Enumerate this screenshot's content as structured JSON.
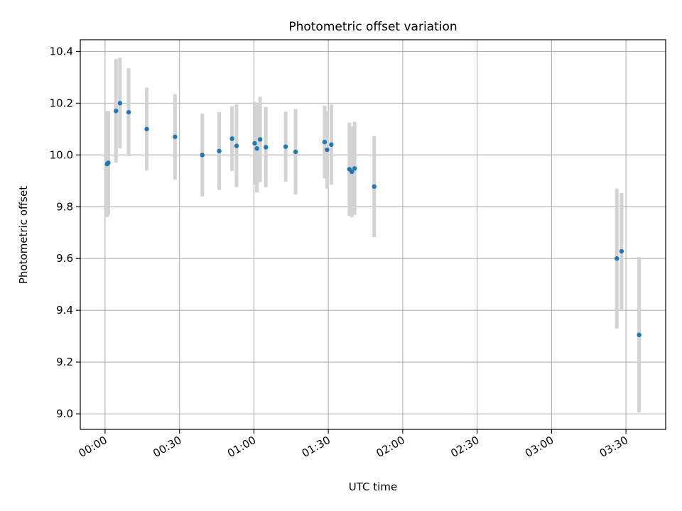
{
  "chart_data": {
    "type": "scatter",
    "title": "Photometric offset variation",
    "xlabel": "UTC time",
    "ylabel": "Photometric offset",
    "x_unit": "minutes",
    "xlim": [
      -10,
      226
    ],
    "ylim": [
      8.94,
      10.445
    ],
    "x_ticks": [
      0,
      30,
      60,
      90,
      120,
      150,
      180,
      210
    ],
    "x_tick_labels": [
      "00:00",
      "00:30",
      "01:00",
      "01:30",
      "02:00",
      "02:30",
      "03:00",
      "03:30"
    ],
    "y_ticks": [
      9.0,
      9.2,
      9.4,
      9.6,
      9.8,
      10.0,
      10.2,
      10.4
    ],
    "y_tick_labels": [
      "9.0",
      "9.2",
      "9.4",
      "9.6",
      "9.8",
      "10.0",
      "10.2",
      "10.4"
    ],
    "grid": true,
    "marker_color": "#1f77b4",
    "errorbar_color": "#d3d3d3",
    "points": [
      {
        "x": 0.8,
        "y": 9.965,
        "yerr": 0.205
      },
      {
        "x": 1.3,
        "y": 9.97,
        "yerr": 0.2
      },
      {
        "x": 4.4,
        "y": 10.17,
        "yerr": 0.2
      },
      {
        "x": 6.0,
        "y": 10.2,
        "yerr": 0.175
      },
      {
        "x": 9.5,
        "y": 10.165,
        "yerr": 0.17
      },
      {
        "x": 16.8,
        "y": 10.1,
        "yerr": 0.16
      },
      {
        "x": 28.2,
        "y": 10.07,
        "yerr": 0.165
      },
      {
        "x": 39.2,
        "y": 10.0,
        "yerr": 0.16
      },
      {
        "x": 46.0,
        "y": 10.015,
        "yerr": 0.15
      },
      {
        "x": 51.2,
        "y": 10.063,
        "yerr": 0.125
      },
      {
        "x": 53.0,
        "y": 10.035,
        "yerr": 0.16
      },
      {
        "x": 60.3,
        "y": 10.045,
        "yerr": 0.16
      },
      {
        "x": 61.2,
        "y": 10.025,
        "yerr": 0.17
      },
      {
        "x": 62.5,
        "y": 10.06,
        "yerr": 0.165
      },
      {
        "x": 64.8,
        "y": 10.03,
        "yerr": 0.155
      },
      {
        "x": 72.8,
        "y": 10.032,
        "yerr": 0.135
      },
      {
        "x": 76.8,
        "y": 10.012,
        "yerr": 0.165
      },
      {
        "x": 88.5,
        "y": 10.05,
        "yerr": 0.14
      },
      {
        "x": 89.5,
        "y": 10.02,
        "yerr": 0.15
      },
      {
        "x": 91.2,
        "y": 10.04,
        "yerr": 0.155
      },
      {
        "x": 98.5,
        "y": 9.945,
        "yerr": 0.18
      },
      {
        "x": 99.5,
        "y": 9.935,
        "yerr": 0.175
      },
      {
        "x": 100.6,
        "y": 9.948,
        "yerr": 0.18
      },
      {
        "x": 108.5,
        "y": 9.878,
        "yerr": 0.195
      },
      {
        "x": 206.3,
        "y": 9.6,
        "yerr": 0.27
      },
      {
        "x": 208.2,
        "y": 9.628,
        "yerr": 0.225
      },
      {
        "x": 215.3,
        "y": 9.305,
        "yerr": 0.3
      }
    ]
  }
}
